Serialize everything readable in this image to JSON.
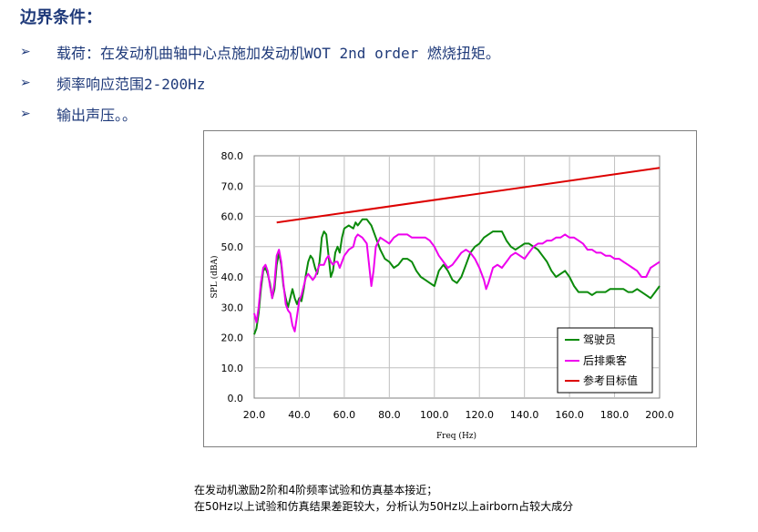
{
  "heading": "边界条件：",
  "bullets": [
    {
      "marker": "➢",
      "text": "载荷：在发动机曲轴中心点施加发动机WOT 2nd order 燃烧扭矩。"
    },
    {
      "marker": "➢",
      "text": "频率响应范围2-200Hz"
    },
    {
      "marker": "➢",
      "text": "输出声压。。"
    }
  ],
  "captions": {
    "line1": "在发动机激励2阶和4阶频率试验和仿真基本接近；",
    "line2": "在50Hz以上试验和仿真结果差距较大，分析认为50Hz以上airborn占较大成分"
  },
  "chart_data": {
    "type": "line",
    "xlabel": "Freq (Hz)",
    "ylabel": "SPL (dBA)",
    "xlim": [
      20,
      200
    ],
    "ylim": [
      0,
      80
    ],
    "xticks": [
      20,
      40,
      60,
      80,
      100,
      120,
      140,
      160,
      180,
      200
    ],
    "yticks": [
      0,
      10,
      20,
      30,
      40,
      50,
      60,
      70,
      80
    ],
    "xtick_labels": [
      "20.0",
      "40.0",
      "60.0",
      "80.0",
      "100.0",
      "120.0",
      "140.0",
      "160.0",
      "180.0",
      "200.0"
    ],
    "ytick_labels": [
      "0.0",
      "10.0",
      "20.0",
      "30.0",
      "40.0",
      "50.0",
      "60.0",
      "70.0",
      "80.0"
    ],
    "grid": true,
    "legend_position": "bottom-right",
    "series": [
      {
        "name": "驾驶员",
        "color": "#0a8a0a",
        "points": [
          [
            20,
            21
          ],
          [
            21,
            23
          ],
          [
            22,
            28
          ],
          [
            23,
            36
          ],
          [
            24,
            42
          ],
          [
            25,
            43
          ],
          [
            26,
            41
          ],
          [
            27,
            38
          ],
          [
            28,
            33
          ],
          [
            29,
            36
          ],
          [
            30,
            44
          ],
          [
            31,
            48
          ],
          [
            32,
            44
          ],
          [
            33,
            37
          ],
          [
            34,
            33
          ],
          [
            35,
            30
          ],
          [
            36,
            33
          ],
          [
            37,
            36
          ],
          [
            38,
            33
          ],
          [
            39,
            31
          ],
          [
            40,
            33
          ],
          [
            41,
            32
          ],
          [
            42,
            36
          ],
          [
            43,
            41
          ],
          [
            44,
            45
          ],
          [
            45,
            47
          ],
          [
            46,
            46
          ],
          [
            47,
            43
          ],
          [
            48,
            41
          ],
          [
            49,
            45
          ],
          [
            50,
            53
          ],
          [
            51,
            55
          ],
          [
            52,
            54
          ],
          [
            53,
            47
          ],
          [
            54,
            40
          ],
          [
            55,
            42
          ],
          [
            56,
            48
          ],
          [
            57,
            50
          ],
          [
            58,
            48
          ],
          [
            59,
            53
          ],
          [
            60,
            56
          ],
          [
            62,
            57
          ],
          [
            64,
            56
          ],
          [
            65,
            58
          ],
          [
            66,
            57
          ],
          [
            68,
            59
          ],
          [
            70,
            59
          ],
          [
            72,
            57
          ],
          [
            74,
            53
          ],
          [
            76,
            49
          ],
          [
            78,
            46
          ],
          [
            80,
            45
          ],
          [
            82,
            43
          ],
          [
            84,
            44
          ],
          [
            86,
            46
          ],
          [
            88,
            46
          ],
          [
            90,
            45
          ],
          [
            92,
            42
          ],
          [
            94,
            40
          ],
          [
            96,
            39
          ],
          [
            98,
            38
          ],
          [
            100,
            37
          ],
          [
            102,
            42
          ],
          [
            104,
            44
          ],
          [
            106,
            42
          ],
          [
            108,
            39
          ],
          [
            110,
            38
          ],
          [
            112,
            40
          ],
          [
            114,
            44
          ],
          [
            116,
            48
          ],
          [
            118,
            50
          ],
          [
            120,
            51
          ],
          [
            122,
            53
          ],
          [
            124,
            54
          ],
          [
            126,
            55
          ],
          [
            128,
            55
          ],
          [
            130,
            55
          ],
          [
            132,
            52
          ],
          [
            134,
            50
          ],
          [
            136,
            49
          ],
          [
            138,
            50
          ],
          [
            140,
            51
          ],
          [
            142,
            51
          ],
          [
            144,
            50
          ],
          [
            146,
            49
          ],
          [
            148,
            47
          ],
          [
            150,
            45
          ],
          [
            152,
            42
          ],
          [
            154,
            40
          ],
          [
            156,
            41
          ],
          [
            158,
            42
          ],
          [
            160,
            40
          ],
          [
            162,
            37
          ],
          [
            164,
            35
          ],
          [
            166,
            35
          ],
          [
            168,
            35
          ],
          [
            170,
            34
          ],
          [
            172,
            35
          ],
          [
            174,
            35
          ],
          [
            176,
            35
          ],
          [
            178,
            36
          ],
          [
            180,
            36
          ],
          [
            182,
            36
          ],
          [
            184,
            36
          ],
          [
            186,
            35
          ],
          [
            188,
            35
          ],
          [
            190,
            36
          ],
          [
            192,
            35
          ],
          [
            194,
            34
          ],
          [
            196,
            33
          ],
          [
            198,
            35
          ],
          [
            200,
            37
          ]
        ]
      },
      {
        "name": "后排乘客",
        "color": "#ee00ee",
        "points": [
          [
            20,
            28
          ],
          [
            21,
            25
          ],
          [
            22,
            30
          ],
          [
            23,
            38
          ],
          [
            24,
            43
          ],
          [
            25,
            44
          ],
          [
            26,
            42
          ],
          [
            27,
            37
          ],
          [
            28,
            33
          ],
          [
            29,
            38
          ],
          [
            30,
            47
          ],
          [
            31,
            49
          ],
          [
            32,
            45
          ],
          [
            33,
            38
          ],
          [
            34,
            31
          ],
          [
            35,
            29
          ],
          [
            36,
            28
          ],
          [
            37,
            24
          ],
          [
            38,
            22
          ],
          [
            39,
            27
          ],
          [
            40,
            32
          ],
          [
            41,
            34
          ],
          [
            42,
            37
          ],
          [
            43,
            40
          ],
          [
            44,
            41
          ],
          [
            45,
            40
          ],
          [
            46,
            39
          ],
          [
            47,
            40
          ],
          [
            48,
            42
          ],
          [
            49,
            44
          ],
          [
            50,
            44
          ],
          [
            51,
            44
          ],
          [
            52,
            46
          ],
          [
            53,
            47
          ],
          [
            54,
            45
          ],
          [
            55,
            44
          ],
          [
            56,
            45
          ],
          [
            57,
            45
          ],
          [
            58,
            43
          ],
          [
            59,
            45
          ],
          [
            60,
            47
          ],
          [
            62,
            49
          ],
          [
            64,
            50
          ],
          [
            65,
            53
          ],
          [
            66,
            54
          ],
          [
            68,
            53
          ],
          [
            70,
            51
          ],
          [
            71,
            44
          ],
          [
            72,
            37
          ],
          [
            73,
            42
          ],
          [
            74,
            50
          ],
          [
            76,
            53
          ],
          [
            78,
            52
          ],
          [
            80,
            51
          ],
          [
            82,
            53
          ],
          [
            84,
            54
          ],
          [
            86,
            54
          ],
          [
            88,
            54
          ],
          [
            90,
            53
          ],
          [
            92,
            53
          ],
          [
            94,
            53
          ],
          [
            96,
            53
          ],
          [
            98,
            52
          ],
          [
            100,
            50
          ],
          [
            102,
            47
          ],
          [
            104,
            45
          ],
          [
            106,
            43
          ],
          [
            108,
            44
          ],
          [
            110,
            46
          ],
          [
            112,
            48
          ],
          [
            114,
            49
          ],
          [
            116,
            48
          ],
          [
            118,
            46
          ],
          [
            120,
            43
          ],
          [
            122,
            39
          ],
          [
            123,
            36
          ],
          [
            124,
            38
          ],
          [
            126,
            43
          ],
          [
            128,
            44
          ],
          [
            130,
            43
          ],
          [
            132,
            45
          ],
          [
            134,
            47
          ],
          [
            136,
            48
          ],
          [
            138,
            47
          ],
          [
            140,
            46
          ],
          [
            142,
            48
          ],
          [
            144,
            50
          ],
          [
            146,
            51
          ],
          [
            148,
            51
          ],
          [
            150,
            52
          ],
          [
            152,
            52
          ],
          [
            154,
            53
          ],
          [
            156,
            53
          ],
          [
            158,
            54
          ],
          [
            160,
            53
          ],
          [
            162,
            53
          ],
          [
            164,
            52
          ],
          [
            166,
            51
          ],
          [
            168,
            49
          ],
          [
            170,
            49
          ],
          [
            172,
            48
          ],
          [
            174,
            48
          ],
          [
            176,
            47
          ],
          [
            178,
            47
          ],
          [
            180,
            46
          ],
          [
            182,
            46
          ],
          [
            184,
            45
          ],
          [
            186,
            44
          ],
          [
            188,
            43
          ],
          [
            190,
            42
          ],
          [
            192,
            40
          ],
          [
            194,
            40
          ],
          [
            196,
            43
          ],
          [
            198,
            44
          ],
          [
            200,
            45
          ]
        ]
      },
      {
        "name": "参考目标值",
        "color": "#dd0000",
        "points": [
          [
            30,
            58
          ],
          [
            200,
            76
          ]
        ]
      }
    ]
  }
}
